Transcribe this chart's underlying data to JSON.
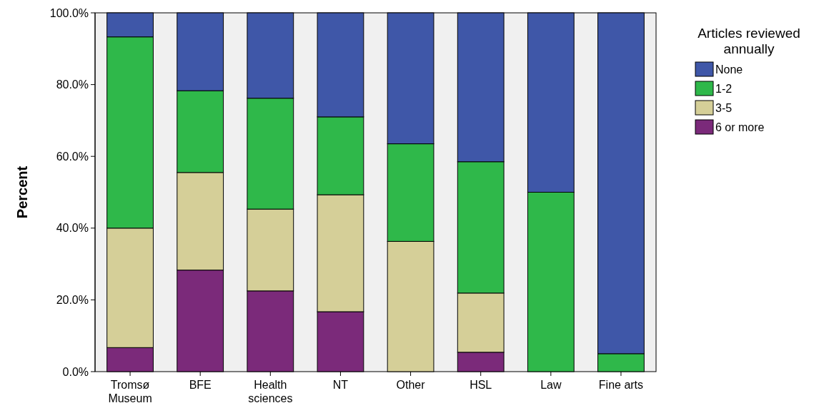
{
  "chart_data": {
    "type": "bar",
    "stacked": true,
    "ylabel": "Percent",
    "legend_title": "Articles reviewed annually",
    "legend": "right",
    "grid": false,
    "categories": [
      "Tromsø Museum",
      "BFE",
      "Health sciences",
      "NT",
      "Other",
      "HSL",
      "Law",
      "Fine arts"
    ],
    "series": [
      {
        "name": "6 or more",
        "color": "#7b2a7a",
        "values": [
          6.7,
          28.3,
          22.5,
          16.7,
          0,
          5.4,
          0,
          0
        ]
      },
      {
        "name": "3-5",
        "color": "#d5cf98",
        "values": [
          33.3,
          27.2,
          22.8,
          32.6,
          36.3,
          16.5,
          0,
          0
        ]
      },
      {
        "name": "1-2",
        "color": "#2fb84a",
        "values": [
          53.3,
          22.8,
          30.9,
          21.7,
          27.2,
          36.6,
          50,
          5
        ]
      },
      {
        "name": "None",
        "color": "#3f57a8",
        "values": [
          6.7,
          21.7,
          23.8,
          29,
          36.5,
          41.5,
          50,
          95
        ]
      }
    ],
    "ylim": [
      0,
      100
    ],
    "yticks": [
      {
        "value": 0,
        "label": "0.0%"
      },
      {
        "value": 20,
        "label": "20.0%"
      },
      {
        "value": 40,
        "label": "40.0%"
      },
      {
        "value": 60,
        "label": "60.0%"
      },
      {
        "value": 80,
        "label": "80.0%"
      },
      {
        "value": 100,
        "label": "100.0%"
      }
    ]
  }
}
